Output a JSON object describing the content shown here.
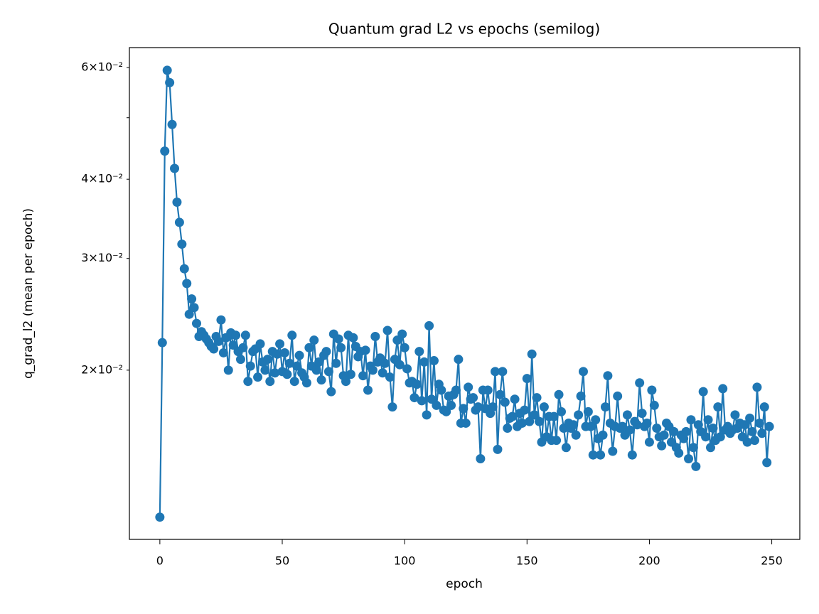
{
  "chart_data": {
    "type": "line",
    "title": "Quantum grad L2 vs epochs (semilog)",
    "xlabel": "epoch",
    "ylabel": "q_grad_l2 (mean per epoch)",
    "color": "#1f77b4",
    "yscale": "log",
    "grid": false,
    "xlim": [
      -12.45,
      261.45
    ],
    "xticks": [
      0,
      50,
      100,
      150,
      200,
      250
    ],
    "ylim": [
      0.01082,
      0.0645
    ],
    "yticks": [
      {
        "value": 0.02,
        "label": "2×10⁻²"
      },
      {
        "value": 0.03,
        "label": "3×10⁻²"
      },
      {
        "value": 0.04,
        "label": "4×10⁻²"
      },
      {
        "value": 0.06,
        "label": "6×10⁻²"
      }
    ],
    "yminor_ticks": [
      0.05
    ],
    "x": [
      0,
      1,
      2,
      3,
      4,
      5,
      6,
      7,
      8,
      9,
      10,
      11,
      12,
      13,
      14,
      15,
      16,
      17,
      18,
      19,
      20,
      21,
      22,
      23,
      24,
      25,
      26,
      27,
      28,
      29,
      30,
      31,
      32,
      33,
      34,
      35,
      36,
      37,
      38,
      39,
      40,
      41,
      42,
      43,
      44,
      45,
      46,
      47,
      48,
      49,
      50,
      51,
      52,
      53,
      54,
      55,
      56,
      57,
      58,
      59,
      60,
      61,
      62,
      63,
      64,
      65,
      66,
      67,
      68,
      69,
      70,
      71,
      72,
      73,
      74,
      75,
      76,
      77,
      78,
      79,
      80,
      81,
      82,
      83,
      84,
      85,
      86,
      87,
      88,
      89,
      90,
      91,
      92,
      93,
      94,
      95,
      96,
      97,
      98,
      99,
      100,
      101,
      102,
      103,
      104,
      105,
      106,
      107,
      108,
      109,
      110,
      111,
      112,
      113,
      114,
      115,
      116,
      117,
      118,
      119,
      120,
      121,
      122,
      123,
      124,
      125,
      126,
      127,
      128,
      129,
      130,
      131,
      132,
      133,
      134,
      135,
      136,
      137,
      138,
      139,
      140,
      141,
      142,
      143,
      144,
      145,
      146,
      147,
      148,
      149,
      150,
      151,
      152,
      153,
      154,
      155,
      156,
      157,
      158,
      159,
      160,
      161,
      162,
      163,
      164,
      165,
      166,
      167,
      168,
      169,
      170,
      171,
      172,
      173,
      174,
      175,
      176,
      177,
      178,
      179,
      180,
      181,
      182,
      183,
      184,
      185,
      186,
      187,
      188,
      189,
      190,
      191,
      192,
      193,
      194,
      195,
      196,
      197,
      198,
      199,
      200,
      201,
      202,
      203,
      204,
      205,
      206,
      207,
      208,
      209,
      210,
      211,
      212,
      213,
      214,
      215,
      216,
      217,
      218,
      219,
      220,
      221,
      222,
      223,
      224,
      225,
      226,
      227,
      228,
      229,
      230,
      231,
      232,
      233,
      234,
      235,
      236,
      237,
      238,
      239,
      240,
      241,
      242,
      243,
      244,
      245,
      246,
      247,
      248,
      249
    ],
    "values": [
      0.01173,
      0.0221,
      0.0443,
      0.0594,
      0.0568,
      0.0488,
      0.0416,
      0.0368,
      0.0342,
      0.0316,
      0.0289,
      0.0274,
      0.0245,
      0.0259,
      0.0251,
      0.0237,
      0.0226,
      0.023,
      0.0227,
      0.0224,
      0.0221,
      0.0218,
      0.0216,
      0.0226,
      0.0222,
      0.024,
      0.0213,
      0.0225,
      0.02,
      0.0229,
      0.0219,
      0.0227,
      0.0214,
      0.0208,
      0.0217,
      0.0227,
      0.0192,
      0.0203,
      0.0214,
      0.0216,
      0.0195,
      0.022,
      0.0206,
      0.02,
      0.0208,
      0.0192,
      0.0214,
      0.0198,
      0.0212,
      0.022,
      0.0199,
      0.0213,
      0.0197,
      0.0205,
      0.0227,
      0.0192,
      0.0203,
      0.0211,
      0.0198,
      0.0195,
      0.0191,
      0.0217,
      0.0203,
      0.0223,
      0.02,
      0.0206,
      0.0193,
      0.0211,
      0.0214,
      0.0199,
      0.0185,
      0.0228,
      0.0205,
      0.0224,
      0.0217,
      0.0196,
      0.0192,
      0.0227,
      0.0197,
      0.0225,
      0.0218,
      0.021,
      0.0214,
      0.0196,
      0.0215,
      0.0186,
      0.0203,
      0.02,
      0.0226,
      0.0206,
      0.0209,
      0.0198,
      0.0205,
      0.0231,
      0.0195,
      0.0175,
      0.0208,
      0.0223,
      0.0204,
      0.0228,
      0.0217,
      0.0201,
      0.0191,
      0.0192,
      0.0181,
      0.019,
      0.0214,
      0.0179,
      0.0206,
      0.017,
      0.0235,
      0.018,
      0.0207,
      0.0176,
      0.019,
      0.0186,
      0.0173,
      0.0172,
      0.0182,
      0.0176,
      0.0183,
      0.0186,
      0.0208,
      0.0165,
      0.0174,
      0.0165,
      0.0188,
      0.018,
      0.0181,
      0.0173,
      0.0175,
      0.0145,
      0.0186,
      0.0174,
      0.0186,
      0.0171,
      0.0175,
      0.0199,
      0.015,
      0.0183,
      0.0199,
      0.0178,
      0.0162,
      0.0168,
      0.0169,
      0.018,
      0.0163,
      0.0171,
      0.0165,
      0.0173,
      0.0194,
      0.0166,
      0.0212,
      0.017,
      0.0181,
      0.0166,
      0.0154,
      0.0175,
      0.0157,
      0.0169,
      0.0155,
      0.0169,
      0.0155,
      0.0183,
      0.0172,
      0.0162,
      0.0151,
      0.0165,
      0.0162,
      0.0164,
      0.0158,
      0.017,
      0.0182,
      0.0199,
      0.0163,
      0.0172,
      0.0163,
      0.0147,
      0.0167,
      0.0156,
      0.0147,
      0.0158,
      0.0175,
      0.0196,
      0.0165,
      0.0149,
      0.0163,
      0.0182,
      0.0162,
      0.0163,
      0.0158,
      0.017,
      0.0161,
      0.0147,
      0.0166,
      0.0164,
      0.0191,
      0.0171,
      0.0163,
      0.0165,
      0.0154,
      0.0186,
      0.0176,
      0.0162,
      0.0157,
      0.0152,
      0.0158,
      0.0165,
      0.0163,
      0.0154,
      0.016,
      0.0151,
      0.0148,
      0.0158,
      0.0156,
      0.016,
      0.0145,
      0.0167,
      0.0151,
      0.0141,
      0.0164,
      0.016,
      0.0185,
      0.0157,
      0.0167,
      0.0151,
      0.0162,
      0.0155,
      0.0175,
      0.0157,
      0.0187,
      0.0161,
      0.0163,
      0.0159,
      0.0161,
      0.017,
      0.0162,
      0.0165,
      0.0157,
      0.0164,
      0.0154,
      0.0168,
      0.016,
      0.0155,
      0.0188,
      0.0165,
      0.0159,
      0.0175,
      0.0143,
      0.0163
    ]
  }
}
